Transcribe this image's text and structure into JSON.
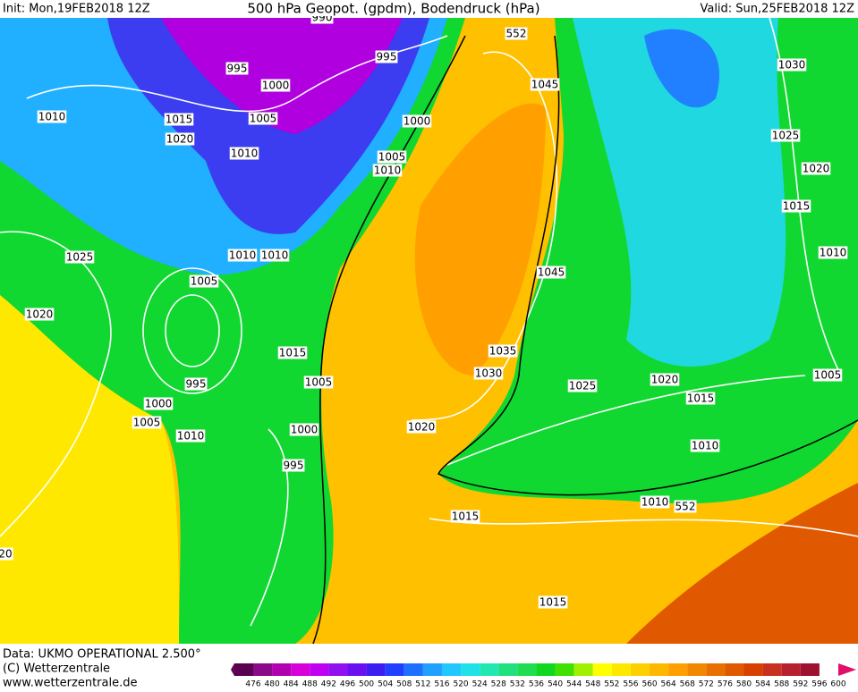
{
  "header": {
    "init": "Init: Mon,19FEB2018 12Z",
    "title": "500 hPa Geopot. (gpdm), Bodendruck (hPa)",
    "valid": "Valid: Sun,25FEB2018 12Z"
  },
  "map": {
    "isobar_labels": [
      "990",
      "995",
      "995",
      "1000",
      "1010",
      "1015",
      "1005",
      "1000",
      "1020",
      "1010",
      "1005",
      "1010",
      "1025",
      "1010",
      "1010",
      "1005",
      "1020",
      "1015",
      "1005",
      "995",
      "1000",
      "1005",
      "1010",
      "1000",
      "995",
      "1020",
      "1035",
      "1030",
      "1025",
      "1020",
      "1015",
      "1010",
      "1005",
      "1010",
      "1015",
      "1015",
      "1045",
      "1045",
      "1030",
      "1025",
      "1020",
      "1015",
      "1010",
      "552",
      "552",
      "20"
    ]
  },
  "footer": {
    "data": "Data: UKMO OPERATIONAL 2.500°",
    "copyright": "(C) Wetterzentrale",
    "url": "www.wetterzentrale.de"
  },
  "colorbar": {
    "labels": [
      476,
      480,
      484,
      488,
      492,
      496,
      500,
      504,
      508,
      512,
      516,
      520,
      524,
      528,
      532,
      536,
      540,
      544,
      548,
      552,
      556,
      560,
      564,
      568,
      572,
      576,
      580,
      584,
      588,
      592,
      596,
      600
    ],
    "colors": [
      "#5a0050",
      "#8a0a8a",
      "#b000b0",
      "#d800d8",
      "#c000f0",
      "#9010f0",
      "#6a10f0",
      "#3c1ef0",
      "#2040ff",
      "#2070ff",
      "#20a0ff",
      "#20c8ff",
      "#20e0e8",
      "#20e8b0",
      "#20e080",
      "#20dc50",
      "#10d820",
      "#40e000",
      "#a0f000",
      "#ffff00",
      "#ffe800",
      "#ffd000",
      "#ffb800",
      "#ffa000",
      "#f08800",
      "#e87000",
      "#e05800",
      "#d84000",
      "#c83020",
      "#b82030",
      "#a01030",
      "#e0106a"
    ]
  }
}
